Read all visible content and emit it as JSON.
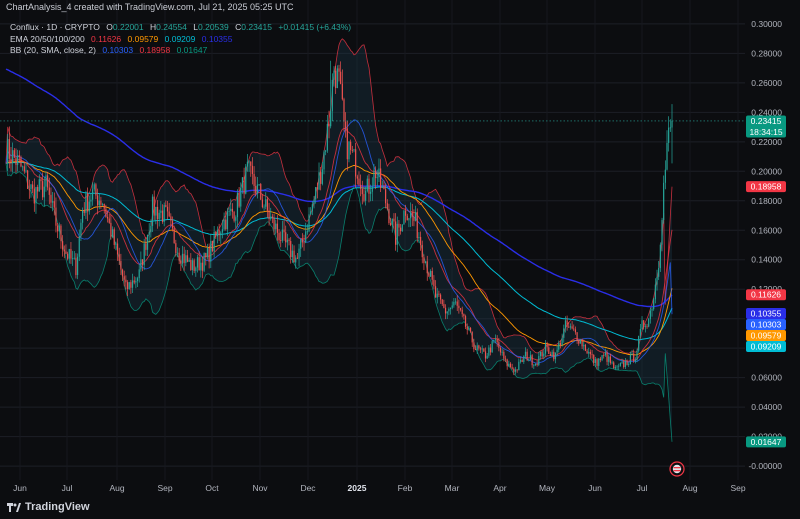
{
  "watermark": "ChartAnalysis_4 created with TradingView.com, Jul 21, 2025 05:25 UTC",
  "legend": {
    "title": "Conflux · 1D · CRYPTO",
    "o_label": "O",
    "o": "0.22001",
    "h_label": "H",
    "h": "0.24554",
    "l_label": "L",
    "l": "0.20539",
    "c_label": "C",
    "c": "0.23415",
    "change": "+0.01415 (+6.43%)",
    "ema_title": "EMA 20/50/100/200",
    "ema20": "0.11626",
    "ema50": "0.09579",
    "ema100": "0.09209",
    "ema200": "0.10355",
    "bb_title": "BB (20, SMA, close, 2)",
    "bb_mid": "0.10303",
    "bb_up": "0.18958",
    "bb_low": "0.01647"
  },
  "colors": {
    "bg": "#0c0d10",
    "up": "#26a69a",
    "down": "#ef5350",
    "ema20": "#f23645",
    "ema50": "#ff9800",
    "ema100": "#00bcd4",
    "ema200": "#2a2ee8",
    "bb_mid": "#2962ff",
    "bb_up": "#f23645",
    "bb_low": "#089981"
  },
  "brand": "TradingView",
  "chart_data": {
    "type": "candlestick",
    "symbol": "Conflux",
    "interval": "1D",
    "ylim": [
      -0.004,
      0.304
    ],
    "y_ticks": [
      "0.30000",
      "0.28000",
      "0.26000",
      "0.24000",
      "0.22000",
      "0.20000",
      "0.18000",
      "0.16000",
      "0.14000",
      "0.12000",
      "0.10000",
      "0.08000",
      "0.06000",
      "0.04000",
      "0.02000",
      "-0.00000"
    ],
    "x_ticks": [
      "Jun",
      "Jul",
      "Aug",
      "Sep",
      "Oct",
      "Nov",
      "Dec",
      "2025",
      "Feb",
      "Mar",
      "Apr",
      "May",
      "Jun",
      "Jul",
      "Aug",
      "Sep"
    ],
    "price_tags": [
      {
        "value": "0.23415",
        "extra": "18:34:15",
        "color": "#089981"
      },
      {
        "value": "0.18958",
        "color": "#f23645"
      },
      {
        "value": "0.11626",
        "color": "#f23645"
      },
      {
        "value": "0.10355",
        "color": "#2a2ee8"
      },
      {
        "value": "0.10303",
        "color": "#2962ff"
      },
      {
        "value": "0.09579",
        "color": "#ff9800"
      },
      {
        "value": "0.09209",
        "color": "#00bcd4"
      },
      {
        "value": "0.01647",
        "color": "#089981"
      }
    ],
    "close_path": [
      [
        0,
        0.215
      ],
      [
        8,
        0.205
      ],
      [
        16,
        0.185
      ],
      [
        24,
        0.19
      ],
      [
        30,
        0.165
      ],
      [
        36,
        0.145
      ],
      [
        42,
        0.135
      ],
      [
        46,
        0.175
      ],
      [
        52,
        0.185
      ],
      [
        58,
        0.18
      ],
      [
        64,
        0.155
      ],
      [
        72,
        0.12
      ],
      [
        80,
        0.13
      ],
      [
        88,
        0.175
      ],
      [
        96,
        0.17
      ],
      [
        104,
        0.145
      ],
      [
        112,
        0.135
      ],
      [
        120,
        0.14
      ],
      [
        130,
        0.165
      ],
      [
        138,
        0.175
      ],
      [
        145,
        0.2
      ],
      [
        152,
        0.185
      ],
      [
        160,
        0.165
      ],
      [
        168,
        0.15
      ],
      [
        175,
        0.14
      ],
      [
        180,
        0.16
      ],
      [
        186,
        0.185
      ],
      [
        190,
        0.205
      ],
      [
        194,
        0.235
      ],
      [
        197,
        0.27
      ],
      [
        200,
        0.26
      ],
      [
        204,
        0.22
      ],
      [
        210,
        0.205
      ],
      [
        216,
        0.185
      ],
      [
        222,
        0.2
      ],
      [
        228,
        0.18
      ],
      [
        234,
        0.155
      ],
      [
        240,
        0.175
      ],
      [
        246,
        0.165
      ],
      [
        252,
        0.14
      ],
      [
        258,
        0.115
      ],
      [
        264,
        0.105
      ],
      [
        270,
        0.11
      ],
      [
        276,
        0.095
      ],
      [
        282,
        0.08
      ],
      [
        288,
        0.075
      ],
      [
        294,
        0.085
      ],
      [
        300,
        0.07
      ],
      [
        306,
        0.065
      ],
      [
        312,
        0.075
      ],
      [
        318,
        0.07
      ],
      [
        324,
        0.08
      ],
      [
        330,
        0.075
      ],
      [
        336,
        0.095
      ],
      [
        342,
        0.09
      ],
      [
        348,
        0.08
      ],
      [
        354,
        0.07
      ],
      [
        360,
        0.075
      ],
      [
        366,
        0.065
      ],
      [
        372,
        0.07
      ],
      [
        378,
        0.075
      ],
      [
        382,
        0.095
      ],
      [
        386,
        0.1
      ],
      [
        389,
        0.115
      ],
      [
        392,
        0.14
      ],
      [
        395,
        0.19
      ],
      [
        398,
        0.225
      ],
      [
        400,
        0.234
      ]
    ]
  }
}
